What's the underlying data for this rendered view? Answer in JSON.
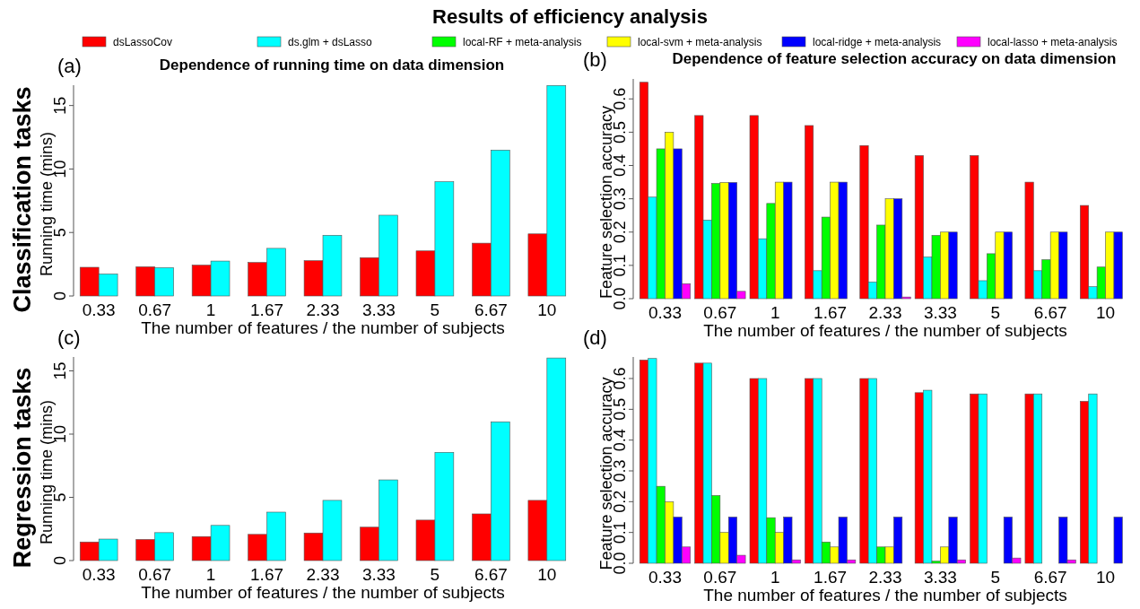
{
  "chart_data": [
    {
      "type": "bar",
      "title": "Results of efficiency analysis",
      "subtitle": "Dependence of running time on data dimension",
      "xlabel": "The number of features / the number of subjects",
      "ylabel": "Running time (mins)",
      "annotations": [
        "(a)",
        "Classification tasks"
      ],
      "categories": [
        "0.33",
        "0.67",
        "1",
        "1.67",
        "2.33",
        "3.33",
        "5",
        "6.67",
        "10"
      ],
      "series": [
        {
          "color": "#ff0000",
          "values": [
            2.26,
            2.3,
            2.43,
            2.64,
            2.78,
            3.02,
            3.55,
            4.16,
            4.89
          ]
        },
        {
          "color": "#00ffff",
          "values": [
            1.73,
            2.23,
            2.75,
            3.75,
            4.78,
            6.36,
            9.0,
            11.49,
            16.58
          ]
        }
      ],
      "ylim": [
        0,
        16.6
      ],
      "yticks": [
        0,
        5,
        10,
        15
      ]
    },
    {
      "type": "bar",
      "subtitle": "Dependence of feature selection accuracy on data dimension",
      "xlabel": "The number of features / the number of subjects",
      "ylabel": "Feature selection accuracy",
      "annotations": [
        "(b)"
      ],
      "categories": [
        "0.33",
        "0.67",
        "1",
        "1.67",
        "2.33",
        "3.33",
        "5",
        "6.67",
        "10"
      ],
      "series": [
        {
          "name": "dsLassoCov",
          "color": "#ff0000",
          "values": [
            0.65,
            0.55,
            0.55,
            0.52,
            0.46,
            0.43,
            0.43,
            0.35,
            0.28
          ]
        },
        {
          "name": "ds.glm + dsLasso",
          "color": "#00ffff",
          "values": [
            0.305,
            0.236,
            0.18,
            0.084,
            0.05,
            0.125,
            0.054,
            0.084,
            0.036
          ]
        },
        {
          "name": "local-RF + meta-analysis",
          "color": "#00ff00",
          "values": [
            0.45,
            0.346,
            0.286,
            0.245,
            0.221,
            0.19,
            0.135,
            0.117,
            0.095
          ]
        },
        {
          "name": "local-svm + meta-analysis",
          "color": "#ffff00",
          "values": [
            0.5,
            0.349,
            0.35,
            0.35,
            0.3,
            0.2,
            0.2,
            0.2,
            0.2
          ]
        },
        {
          "name": "local-ridge + meta-analysis",
          "color": "#0000ff",
          "values": [
            0.45,
            0.349,
            0.35,
            0.35,
            0.3,
            0.2,
            0.2,
            0.2,
            0.2
          ]
        },
        {
          "name": "local-lasso + meta-analysis",
          "color": "#ff00ff",
          "values": [
            0.045,
            0.022,
            0,
            0,
            0.005,
            0,
            0,
            0,
            0
          ]
        }
      ],
      "ylim": [
        0,
        0.66
      ],
      "yticks": [
        {
          "value": 0,
          "label": "0.0"
        },
        0.1,
        0.2,
        0.3,
        0.4,
        0.5,
        0.6
      ],
      "legend": "top"
    },
    {
      "type": "bar",
      "xlabel": "The number of features / the number of subjects",
      "ylabel": "Running time (mins)",
      "annotations": [
        "(c)",
        "Regression tasks"
      ],
      "categories": [
        "0.33",
        "0.67",
        "1",
        "1.67",
        "2.33",
        "3.33",
        "5",
        "6.67",
        "10"
      ],
      "series": [
        {
          "color": "#ff0000",
          "values": [
            1.47,
            1.67,
            1.9,
            2.07,
            2.18,
            2.64,
            3.2,
            3.69,
            4.76
          ]
        },
        {
          "color": "#00ffff",
          "values": [
            1.7,
            2.21,
            2.78,
            3.83,
            4.76,
            6.38,
            8.56,
            10.97,
            16.02
          ]
        }
      ],
      "ylim": [
        0,
        16.1
      ],
      "yticks": [
        0,
        5,
        10,
        15
      ]
    },
    {
      "type": "bar",
      "xlabel": "The number of features / the number of subjects",
      "ylabel": "Feature selection accuracy",
      "annotations": [
        "(d)"
      ],
      "categories": [
        "0.33",
        "0.67",
        "1",
        "1.67",
        "2.33",
        "3.33",
        "5",
        "6.67",
        "10"
      ],
      "series": [
        {
          "color": "#ff0000",
          "values": [
            0.66,
            0.65,
            0.6,
            0.6,
            0.6,
            0.554,
            0.55,
            0.55,
            0.526
          ]
        },
        {
          "color": "#00ffff",
          "values": [
            0.665,
            0.65,
            0.6,
            0.6,
            0.6,
            0.562,
            0.55,
            0.55,
            0.55
          ]
        },
        {
          "color": "#00ff00",
          "values": [
            0.25,
            0.22,
            0.148,
            0.069,
            0.053,
            0.007,
            0,
            0,
            0
          ]
        },
        {
          "color": "#ffff00",
          "values": [
            0.2,
            0.1,
            0.1,
            0.053,
            0.053,
            0.053,
            0,
            0,
            0
          ]
        },
        {
          "color": "#0000ff",
          "values": [
            0.15,
            0.15,
            0.15,
            0.15,
            0.15,
            0.15,
            0.15,
            0.15,
            0.15
          ]
        },
        {
          "color": "#ff00ff",
          "values": [
            0.053,
            0.026,
            0.011,
            0.011,
            0,
            0.011,
            0.017,
            0.011,
            0
          ]
        }
      ],
      "ylim": [
        0,
        0.67
      ],
      "yticks": [
        {
          "value": 0,
          "label": "0.0"
        },
        0.1,
        0.2,
        0.3,
        0.4,
        0.5,
        0.6
      ]
    }
  ]
}
